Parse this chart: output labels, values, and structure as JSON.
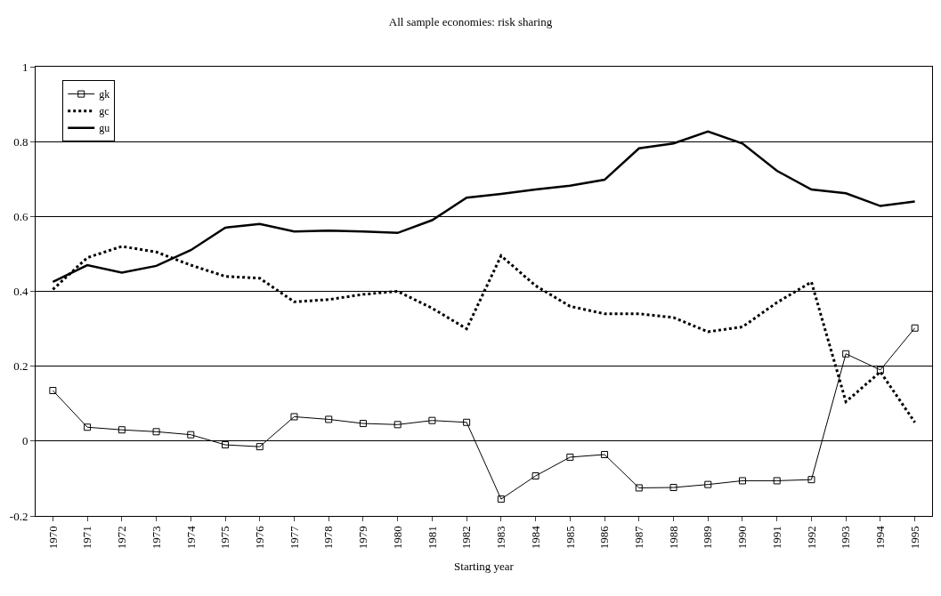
{
  "chart_data": {
    "type": "line",
    "title": "All sample economies: risk sharing",
    "xlabel": "Starting year",
    "categories": [
      "1970",
      "1971",
      "1972",
      "1973",
      "1974",
      "1975",
      "1976",
      "1977",
      "1978",
      "1979",
      "1980",
      "1981",
      "1982",
      "1983",
      "1984",
      "1985",
      "1986",
      "1987",
      "1988",
      "1989",
      "1990",
      "1991",
      "1992",
      "1993",
      "1994",
      "1995"
    ],
    "series": [
      {
        "name": "gk",
        "color": "#000000",
        "marker": "square",
        "line_style": "solid",
        "values": [
          0.135,
          0.037,
          0.03,
          0.025,
          0.017,
          -0.01,
          -0.015,
          0.065,
          0.058,
          0.047,
          0.044,
          0.055,
          0.05,
          -0.155,
          -0.093,
          -0.043,
          -0.036,
          -0.125,
          -0.124,
          -0.116,
          -0.106,
          -0.106,
          -0.103,
          0.233,
          0.19,
          0.302
        ]
      },
      {
        "name": "gc",
        "color": "#000000",
        "marker": "none",
        "line_style": "dotted",
        "values": [
          0.405,
          0.49,
          0.52,
          0.505,
          0.47,
          0.44,
          0.435,
          0.372,
          0.378,
          0.392,
          0.4,
          0.355,
          0.3,
          0.495,
          0.415,
          0.36,
          0.34,
          0.34,
          0.33,
          0.292,
          0.305,
          0.37,
          0.425,
          0.105,
          0.185,
          0.05
        ]
      },
      {
        "name": "gu",
        "color": "#000000",
        "marker": "none",
        "line_style": "solid",
        "values": [
          0.425,
          0.47,
          0.45,
          0.468,
          0.51,
          0.57,
          0.58,
          0.56,
          0.562,
          0.56,
          0.556,
          0.59,
          0.65,
          0.66,
          0.672,
          0.682,
          0.698,
          0.782,
          0.795,
          0.827,
          0.795,
          0.722,
          0.672,
          0.662,
          0.628,
          0.64
        ]
      }
    ],
    "ylim": [
      -0.2,
      1
    ],
    "yticks": [
      -0.2,
      0,
      0.2,
      0.4,
      0.6,
      0.8,
      1
    ],
    "grid": "y",
    "legend": "top left"
  }
}
